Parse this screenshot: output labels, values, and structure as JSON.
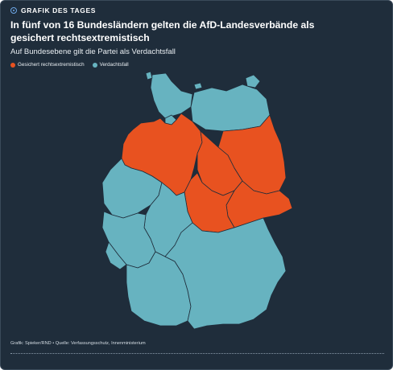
{
  "header": {
    "kicker": "GRAFIK DES TAGES",
    "title": "In fünf von 16 Bundesländern gelten die AfD-Landesverbände als gesichert rechtsextremistisch",
    "subtitle": "Auf Bundesebene gilt die Partei als Verdachtsfall"
  },
  "legend": [
    {
      "label": "Gesichert rechtsextremistisch",
      "color": "#e85220"
    },
    {
      "label": "Verdachtsfall",
      "color": "#67b3c0"
    }
  ],
  "colors": {
    "background": "#1f2d3b",
    "gesichert": "#e85220",
    "verdacht": "#67b3c0",
    "accent_icon": "#6ea8e8"
  },
  "map": {
    "states": [
      {
        "name": "Schleswig-Holstein",
        "status": "verdacht"
      },
      {
        "name": "Mecklenburg-Vorpommern",
        "status": "verdacht"
      },
      {
        "name": "Hamburg",
        "status": "verdacht"
      },
      {
        "name": "Bremen",
        "status": "verdacht"
      },
      {
        "name": "Niedersachsen",
        "status": "gesichert"
      },
      {
        "name": "Berlin",
        "status": "verdacht"
      },
      {
        "name": "Brandenburg",
        "status": "gesichert"
      },
      {
        "name": "Sachsen-Anhalt",
        "status": "gesichert"
      },
      {
        "name": "Sachsen",
        "status": "gesichert"
      },
      {
        "name": "Thüringen",
        "status": "gesichert"
      },
      {
        "name": "Nordrhein-Westfalen",
        "status": "verdacht"
      },
      {
        "name": "Hessen",
        "status": "verdacht"
      },
      {
        "name": "Rheinland-Pfalz",
        "status": "verdacht"
      },
      {
        "name": "Saarland",
        "status": "verdacht"
      },
      {
        "name": "Baden-Württemberg",
        "status": "verdacht"
      },
      {
        "name": "Bayern",
        "status": "verdacht"
      }
    ]
  },
  "footer": {
    "source": "Grafik: Spieker/RND • Quelle: Verfassungsschutz, Innenministerium"
  }
}
